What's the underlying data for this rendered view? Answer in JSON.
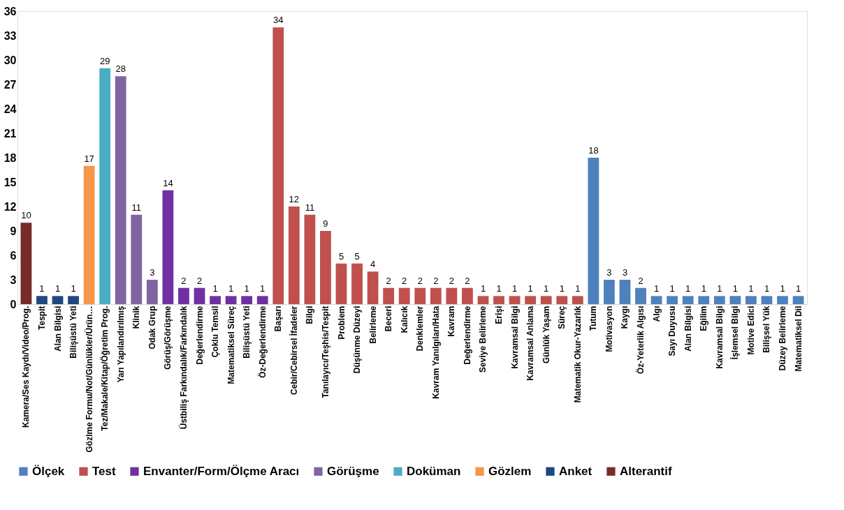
{
  "chart_data": {
    "type": "bar",
    "categories": [
      "Kamera/Ses Kaydı/Video/Prog.",
      "Tespit",
      "Alan Bilgisi",
      "Bilişüstü Yeti",
      "Gözlme Formu/Not/Günlükler/Ürün…",
      "Tez/Makale/Kitap/Öğretim Prog.",
      "Yarı Yapılandırılmış",
      "Klinik",
      "Odak Grup",
      "Görüş/Görüşme",
      "Üstbiliş Farkındalık/Farkındalık",
      "Değerlendirme",
      "Çoklu Temsil",
      "Matematiksel Süreç",
      "Bilişüstü Yeti",
      "Öz-Değerlendirme",
      "Başarı",
      "Cebir/Cebirsel İfadeler",
      "Bilgi",
      "Tanılayıcı/Teşhis/Tespit",
      "Problem",
      "Düşünme Düzeyi",
      "Belirleme",
      "Beceri",
      "Kalıcık",
      "Denklemler",
      "Kavram Yanılgıları/Hata",
      "Kavram",
      "Değerlendirme",
      "Seviye Belirleme",
      "Erişi",
      "Kavramsal Bilgi",
      "Kavramsal Anlama",
      "Günlük Yaşam",
      "Süreç",
      "Matematik Okur-Yazarlık",
      "Tutum",
      "Motivasyon",
      "Kaygı",
      "Öz-Yeterlik Algısı",
      "Algı",
      "Sayı Duyusu",
      "Alan Bilgisi",
      "Eğilim",
      "Kavramsal Bilgi",
      "İşlemsel Bilgi",
      "Motive Edici",
      "Bilişsel Yük",
      "Düzey Belirleme",
      "Matematiksel Dil"
    ],
    "series": [
      {
        "name": "Ölçek",
        "color": "#4f81bd",
        "values": [
          null,
          null,
          null,
          null,
          null,
          null,
          null,
          null,
          null,
          null,
          null,
          null,
          null,
          null,
          null,
          null,
          null,
          null,
          null,
          null,
          null,
          null,
          null,
          null,
          null,
          null,
          null,
          null,
          null,
          null,
          null,
          null,
          null,
          null,
          null,
          null,
          18,
          3,
          3,
          2,
          1,
          1,
          1,
          1,
          1,
          1,
          1,
          1,
          1,
          1
        ]
      },
      {
        "name": "Test",
        "color": "#c0504d",
        "values": [
          null,
          null,
          null,
          null,
          null,
          null,
          null,
          null,
          null,
          null,
          null,
          null,
          null,
          null,
          null,
          null,
          34,
          12,
          11,
          9,
          5,
          5,
          4,
          2,
          2,
          2,
          2,
          2,
          2,
          1,
          1,
          1,
          1,
          1,
          1,
          1,
          null,
          null,
          null,
          null,
          null,
          null,
          null,
          null,
          null,
          null,
          null,
          null,
          null,
          null
        ]
      },
      {
        "name": "Envanter/Form/Ölçme Aracı",
        "color": "#7030a0",
        "values": [
          null,
          null,
          null,
          null,
          null,
          null,
          null,
          null,
          null,
          14,
          2,
          2,
          1,
          1,
          1,
          1,
          null,
          null,
          null,
          null,
          null,
          null,
          null,
          null,
          null,
          null,
          null,
          null,
          null,
          null,
          null,
          null,
          null,
          null,
          null,
          null,
          null,
          null,
          null,
          null,
          null,
          null,
          null,
          null,
          null,
          null,
          null,
          null,
          null,
          null
        ]
      },
      {
        "name": "Görüşme",
        "color": "#8064a2",
        "values": [
          null,
          null,
          null,
          null,
          null,
          null,
          28,
          11,
          3,
          null,
          null,
          null,
          null,
          null,
          null,
          null,
          null,
          null,
          null,
          null,
          null,
          null,
          null,
          null,
          null,
          null,
          null,
          null,
          null,
          null,
          null,
          null,
          null,
          null,
          null,
          null,
          null,
          null,
          null,
          null,
          null,
          null,
          null,
          null,
          null,
          null,
          null,
          null,
          null,
          null
        ]
      },
      {
        "name": "Doküman",
        "color": "#4bacc6",
        "values": [
          null,
          null,
          null,
          null,
          null,
          29,
          null,
          null,
          null,
          null,
          null,
          null,
          null,
          null,
          null,
          null,
          null,
          null,
          null,
          null,
          null,
          null,
          null,
          null,
          null,
          null,
          null,
          null,
          null,
          null,
          null,
          null,
          null,
          null,
          null,
          null,
          null,
          null,
          null,
          null,
          null,
          null,
          null,
          null,
          null,
          null,
          null,
          null,
          null,
          null
        ]
      },
      {
        "name": "Gözlem",
        "color": "#f79646",
        "values": [
          null,
          null,
          null,
          null,
          17,
          null,
          null,
          null,
          null,
          null,
          null,
          null,
          null,
          null,
          null,
          null,
          null,
          null,
          null,
          null,
          null,
          null,
          null,
          null,
          null,
          null,
          null,
          null,
          null,
          null,
          null,
          null,
          null,
          null,
          null,
          null,
          null,
          null,
          null,
          null,
          null,
          null,
          null,
          null,
          null,
          null,
          null,
          null,
          null,
          null
        ]
      },
      {
        "name": "Anket",
        "color": "#1f497d",
        "values": [
          null,
          1,
          1,
          1,
          null,
          null,
          null,
          null,
          null,
          null,
          null,
          null,
          null,
          null,
          null,
          null,
          null,
          null,
          null,
          null,
          null,
          null,
          null,
          null,
          null,
          null,
          null,
          null,
          null,
          null,
          null,
          null,
          null,
          null,
          null,
          null,
          null,
          null,
          null,
          null,
          null,
          null,
          null,
          null,
          null,
          null,
          null,
          null,
          null,
          null
        ]
      },
      {
        "name": "Alterantif",
        "color": "#772c2a",
        "values": [
          10,
          null,
          null,
          null,
          null,
          null,
          null,
          null,
          null,
          null,
          null,
          null,
          null,
          null,
          null,
          null,
          null,
          null,
          null,
          null,
          null,
          null,
          null,
          null,
          null,
          null,
          null,
          null,
          null,
          null,
          null,
          null,
          null,
          null,
          null,
          null,
          null,
          null,
          null,
          null,
          null,
          null,
          null,
          null,
          null,
          null,
          null,
          null,
          null,
          null
        ]
      }
    ],
    "ylim": [
      0,
      36
    ],
    "yticks": [
      0,
      3,
      6,
      9,
      12,
      15,
      18,
      21,
      24,
      27,
      30,
      33,
      36
    ],
    "data_labels": true,
    "grid": false,
    "legend": "bottom"
  }
}
